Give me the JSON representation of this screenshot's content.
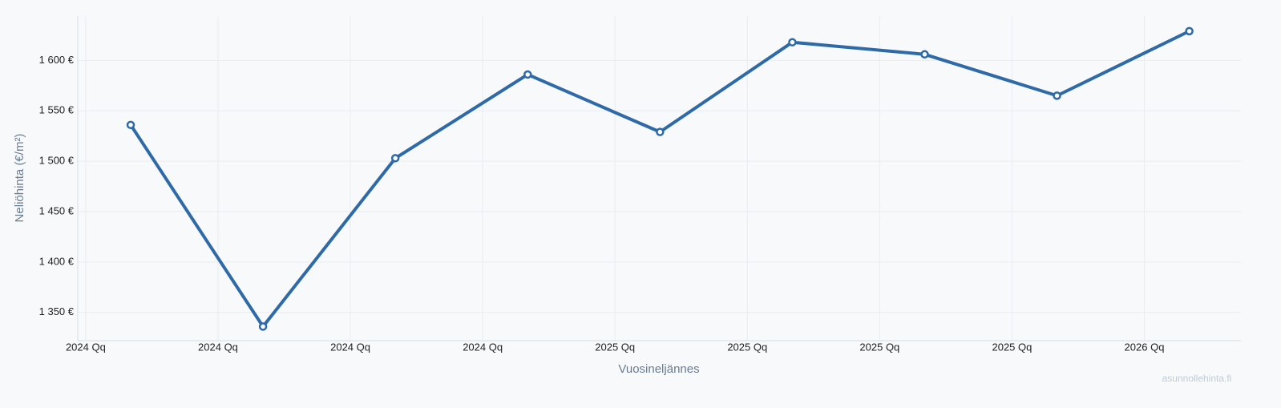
{
  "chart_data": {
    "type": "line",
    "x_label": "Vuosineljännes",
    "y_label": "Neliöhinta (€/m²)",
    "watermark": "asunnollehinta.fi",
    "x": [
      0.34,
      1.34,
      2.34,
      3.34,
      4.34,
      5.34,
      6.34,
      7.34,
      8.34
    ],
    "xlim": [
      -0.06,
      8.73
    ],
    "xticks": [
      {
        "value": 0,
        "label": "2024 Qq"
      },
      {
        "value": 1,
        "label": "2024 Qq"
      },
      {
        "value": 2,
        "label": "2024 Qq"
      },
      {
        "value": 3,
        "label": "2024 Qq"
      },
      {
        "value": 4,
        "label": "2025 Qq"
      },
      {
        "value": 5,
        "label": "2025 Qq"
      },
      {
        "value": 6,
        "label": "2025 Qq"
      },
      {
        "value": 7,
        "label": "2025 Qq"
      },
      {
        "value": 8,
        "label": "2026 Qq"
      }
    ],
    "series": [
      {
        "color": "#2f6aa8",
        "values": [
          1536,
          1336,
          1503,
          1586,
          1529,
          1618,
          1606,
          1565,
          1629
        ]
      }
    ],
    "ylim": [
      1322,
      1644
    ],
    "yticks": [
      {
        "value": 1350,
        "label": "1 350 €"
      },
      {
        "value": 1400,
        "label": "1 400 €"
      },
      {
        "value": 1450,
        "label": "1 450 €"
      },
      {
        "value": 1500,
        "label": "1 500 €"
      },
      {
        "value": 1550,
        "label": "1 550 €"
      },
      {
        "value": 1600,
        "label": "1 600 €"
      }
    ],
    "grid": true
  }
}
